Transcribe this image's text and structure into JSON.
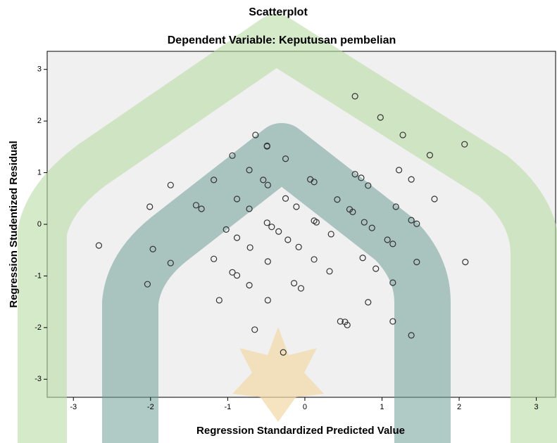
{
  "chart_data": {
    "type": "scatter",
    "title": "Scatterplot",
    "subtitle": "Dependent Variable: Keputusan pembelian",
    "x_label": "Regression Standardized Predicted Value",
    "y_label": "Regression Studentized Residual",
    "color": "#333333",
    "xlim": [
      -3.34,
      3.25
    ],
    "ylim": [
      -3.35,
      3.35
    ],
    "xticks": [
      -3,
      -2,
      -1,
      0,
      1,
      2,
      3
    ],
    "yticks": [
      -3,
      -2,
      -1,
      0,
      1,
      2,
      3
    ],
    "x": [
      0.65,
      0.98,
      1.27,
      2.07,
      -0.64,
      -0.49,
      -0.49,
      -0.94,
      -0.25,
      1.62,
      -0.72,
      1.22,
      0.65,
      0.73,
      1.38,
      -1.18,
      -0.54,
      0.07,
      0.12,
      -1.74,
      -0.48,
      0.82,
      -0.88,
      -0.25,
      0.42,
      1.68,
      -1.41,
      -1.34,
      -2.01,
      -0.11,
      -0.72,
      0.58,
      0.62,
      1.18,
      -2.67,
      0.12,
      0.15,
      0.77,
      1.38,
      1.45,
      -0.49,
      -0.43,
      -1.02,
      -0.34,
      0.87,
      -0.88,
      0.34,
      -0.22,
      1.07,
      1.14,
      -1.97,
      -0.71,
      -0.08,
      1.45,
      -1.18,
      0.12,
      0.75,
      -1.74,
      -0.48,
      2.08,
      -0.94,
      -0.88,
      0.32,
      0.92,
      -2.04,
      -0.72,
      -0.14,
      -0.05,
      1.14,
      -1.11,
      -0.48,
      0.82,
      0.46,
      0.52,
      0.55,
      1.14,
      -0.65,
      1.38,
      -0.28
    ],
    "y": [
      2.48,
      2.07,
      1.73,
      1.55,
      1.73,
      1.52,
      1.51,
      1.33,
      1.27,
      1.34,
      1.05,
      1.05,
      0.97,
      0.9,
      0.87,
      0.86,
      0.86,
      0.87,
      0.82,
      0.76,
      0.76,
      0.75,
      0.49,
      0.5,
      0.48,
      0.49,
      0.37,
      0.3,
      0.34,
      0.34,
      0.3,
      0.29,
      0.24,
      0.34,
      -0.41,
      0.07,
      0.04,
      0.04,
      0.08,
      0.01,
      0.03,
      -0.05,
      -0.1,
      -0.14,
      -0.07,
      -0.26,
      -0.19,
      -0.3,
      -0.3,
      -0.38,
      -0.48,
      -0.45,
      -0.44,
      -0.73,
      -0.67,
      -0.68,
      -0.65,
      -0.75,
      -0.72,
      -0.73,
      -0.93,
      -0.99,
      -0.91,
      -0.86,
      -1.16,
      -1.18,
      -1.14,
      -1.24,
      -1.13,
      -1.47,
      -1.47,
      -1.51,
      -1.88,
      -1.89,
      -1.95,
      -1.88,
      -2.04,
      -2.15,
      -2.48
    ]
  }
}
